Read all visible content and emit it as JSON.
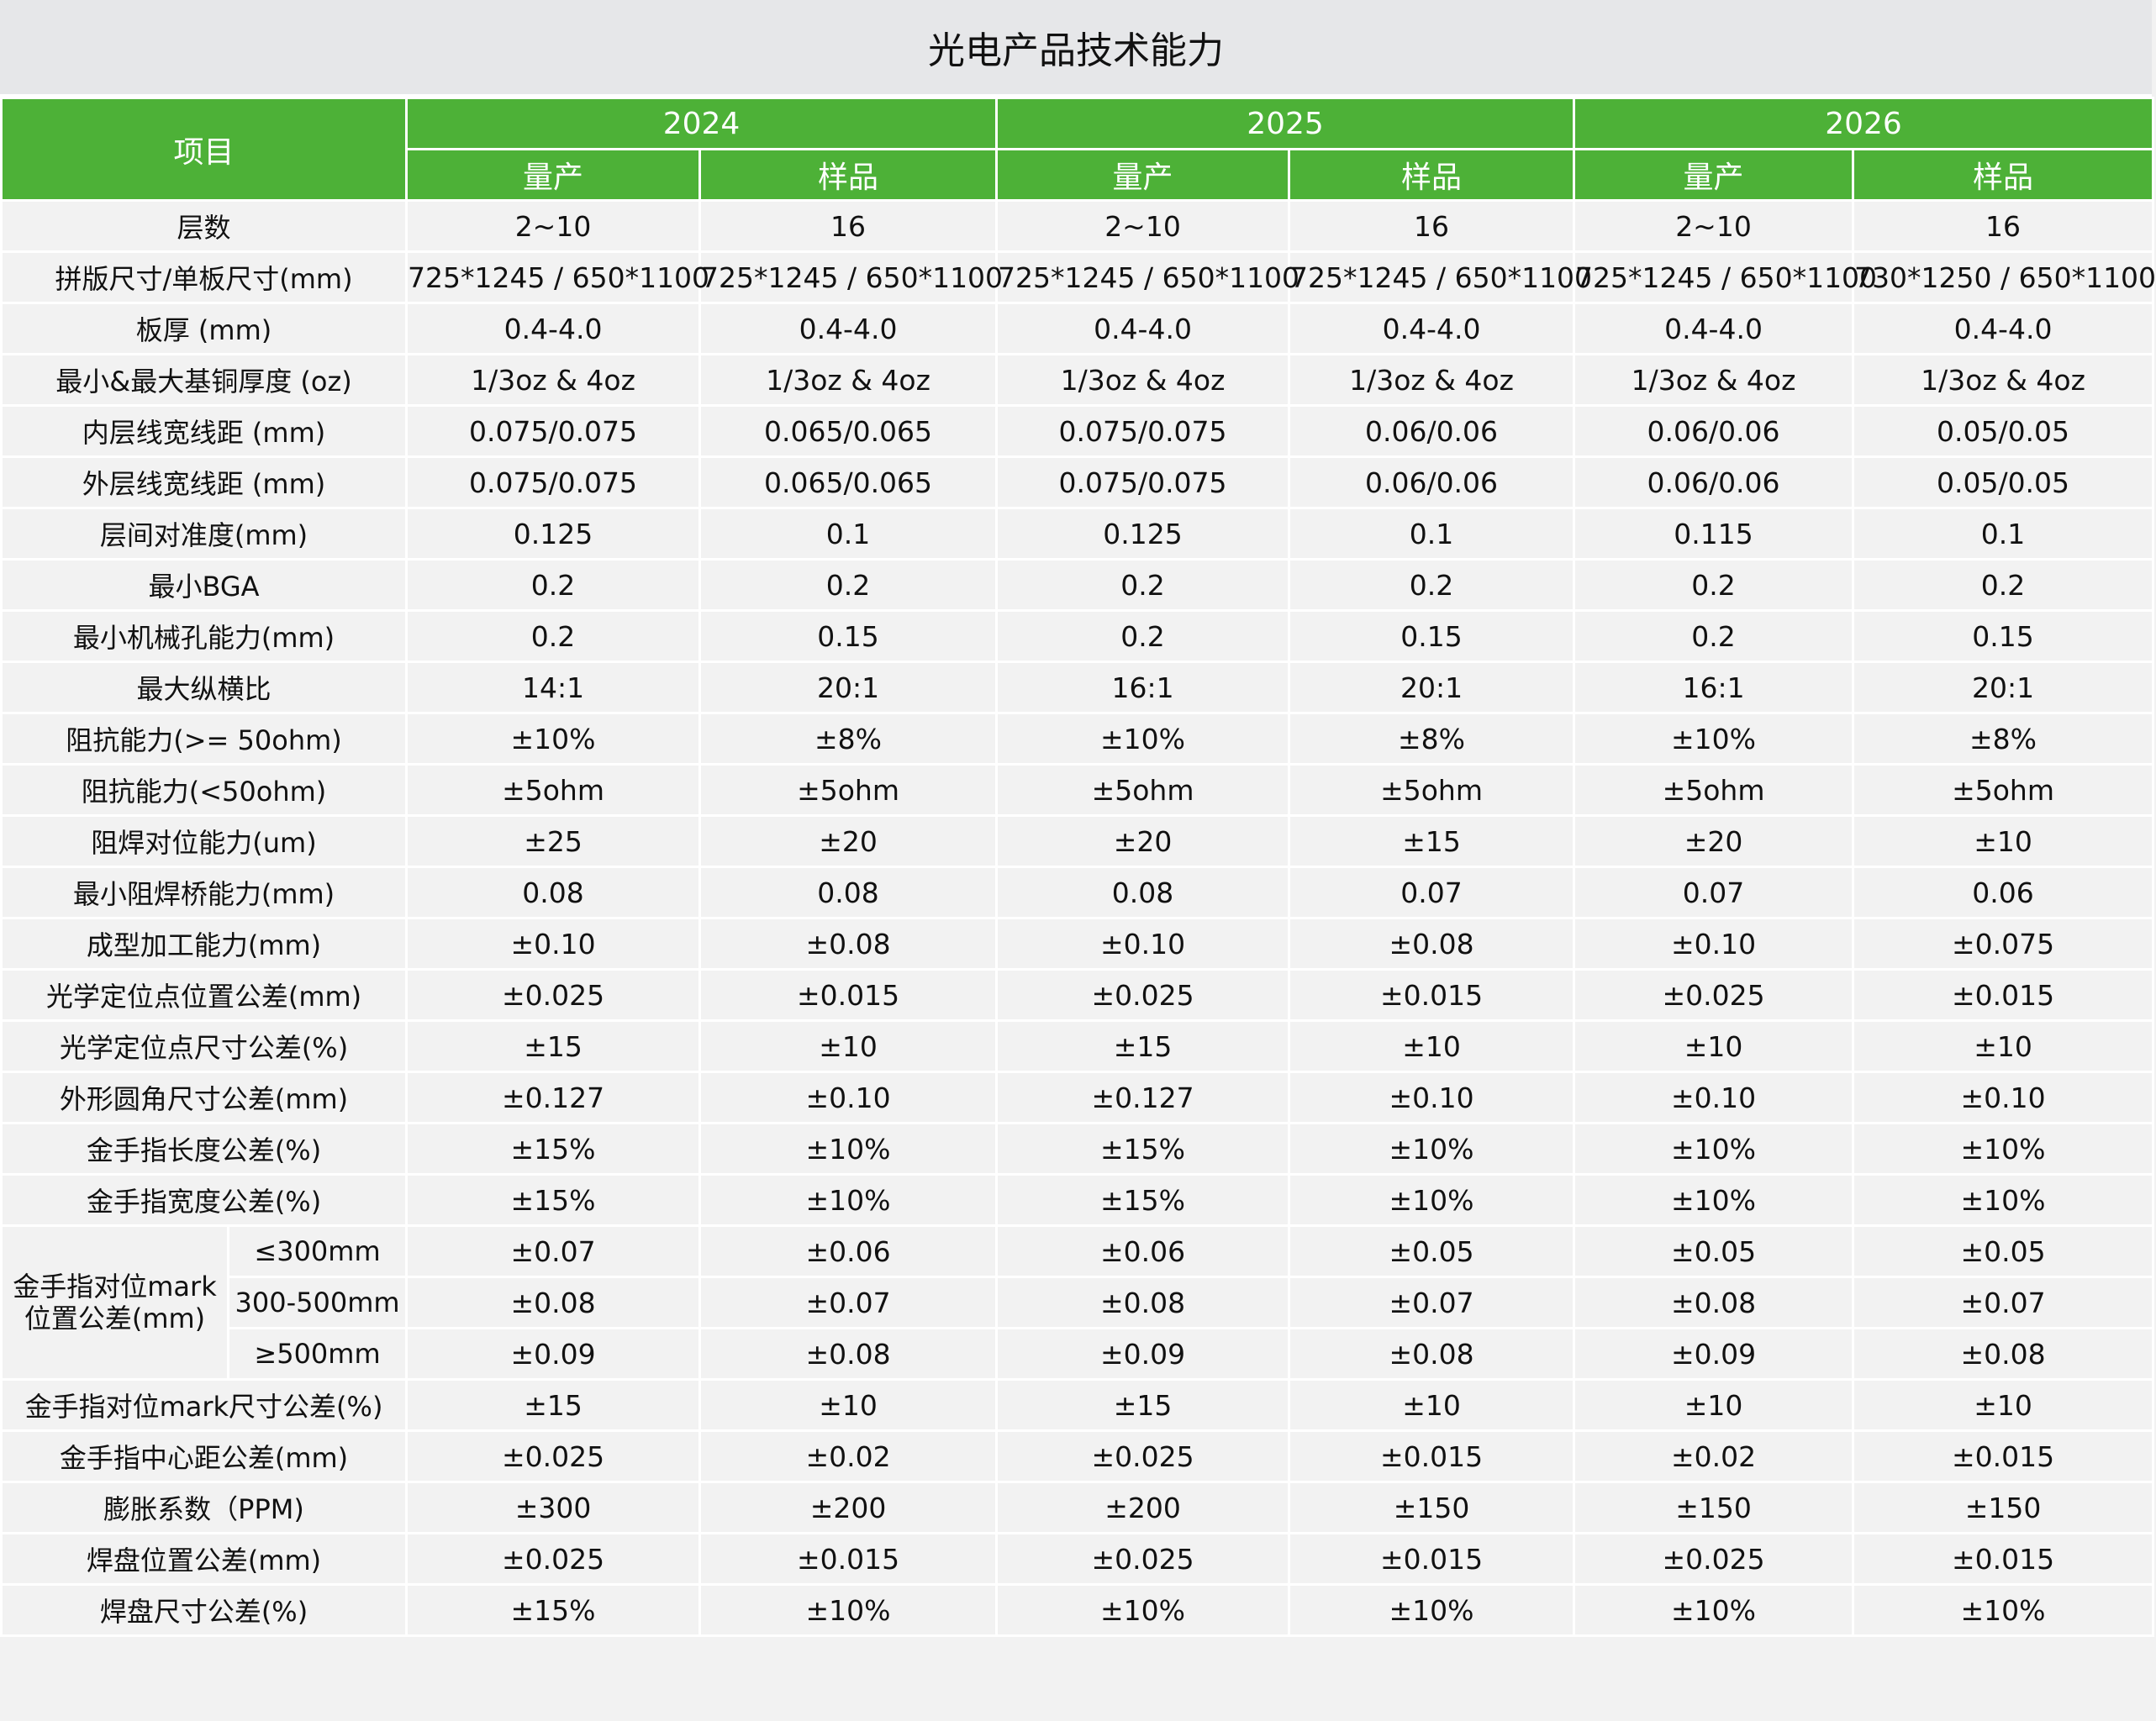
{
  "title": "光电产品技术能力",
  "header": {
    "item_label": "项目",
    "years": [
      "2024",
      "2025",
      "2026"
    ],
    "sub_labels": [
      "量产",
      "样品"
    ]
  },
  "rows": [
    {
      "label": "层数",
      "values": [
        "2~10",
        "16",
        "2~10",
        "16",
        "2~10",
        "16"
      ]
    },
    {
      "label": "拼版尺寸/单板尺寸(mm)",
      "values": [
        "725*1245 / 650*1100",
        "725*1245 / 650*1100",
        "725*1245 / 650*1100",
        "725*1245 / 650*1100",
        "725*1245 / 650*1100",
        "730*1250 / 650*1100"
      ]
    },
    {
      "label": "板厚 (mm)",
      "values": [
        "0.4-4.0",
        "0.4-4.0",
        "0.4-4.0",
        "0.4-4.0",
        "0.4-4.0",
        "0.4-4.0"
      ]
    },
    {
      "label": "最小&最大基铜厚度 (oz)",
      "values": [
        "1/3oz & 4oz",
        "1/3oz & 4oz",
        "1/3oz & 4oz",
        "1/3oz & 4oz",
        "1/3oz & 4oz",
        "1/3oz & 4oz"
      ]
    },
    {
      "label": "内层线宽线距 (mm)",
      "values": [
        "0.075/0.075",
        "0.065/0.065",
        "0.075/0.075",
        "0.06/0.06",
        "0.06/0.06",
        "0.05/0.05"
      ]
    },
    {
      "label": "外层线宽线距 (mm)",
      "values": [
        "0.075/0.075",
        "0.065/0.065",
        "0.075/0.075",
        "0.06/0.06",
        "0.06/0.06",
        "0.05/0.05"
      ]
    },
    {
      "label": "层间对准度(mm)",
      "values": [
        "0.125",
        "0.1",
        "0.125",
        "0.1",
        "0.115",
        "0.1"
      ]
    },
    {
      "label": "最小BGA",
      "values": [
        "0.2",
        "0.2",
        "0.2",
        "0.2",
        "0.2",
        "0.2"
      ]
    },
    {
      "label": "最小机械孔能力(mm)",
      "values": [
        "0.2",
        "0.15",
        "0.2",
        "0.15",
        "0.2",
        "0.15"
      ]
    },
    {
      "label": "最大纵横比",
      "values": [
        "14:1",
        "20:1",
        "16:1",
        "20:1",
        "16:1",
        "20:1"
      ]
    },
    {
      "label": "阻抗能力(>= 50ohm)",
      "values": [
        "±10%",
        "±8%",
        "±10%",
        "±8%",
        "±10%",
        "±8%"
      ]
    },
    {
      "label": "阻抗能力(<50ohm)",
      "values": [
        "±5ohm",
        "±5ohm",
        "±5ohm",
        "±5ohm",
        "±5ohm",
        "±5ohm"
      ]
    },
    {
      "label": "阻焊对位能力(um)",
      "values": [
        "±25",
        "±20",
        "±20",
        "±15",
        "±20",
        "±10"
      ]
    },
    {
      "label": "最小阻焊桥能力(mm)",
      "values": [
        "0.08",
        "0.08",
        "0.08",
        "0.07",
        "0.07",
        "0.06"
      ]
    },
    {
      "label": "成型加工能力(mm)",
      "values": [
        "±0.10",
        "±0.08",
        "±0.10",
        "±0.08",
        "±0.10",
        "±0.075"
      ]
    },
    {
      "label": "光学定位点位置公差(mm)",
      "values": [
        "±0.025",
        "±0.015",
        "±0.025",
        "±0.015",
        "±0.025",
        "±0.015"
      ]
    },
    {
      "label": "光学定位点尺寸公差(%)",
      "values": [
        "±15",
        "±10",
        "±15",
        "±10",
        "±10",
        "±10"
      ]
    },
    {
      "label": "外形圆角尺寸公差(mm)",
      "values": [
        "±0.127",
        "±0.10",
        "±0.127",
        "±0.10",
        "±0.10",
        "±0.10"
      ]
    },
    {
      "label": "金手指长度公差(%)",
      "values": [
        "±15%",
        "±10%",
        "±15%",
        "±10%",
        "±10%",
        "±10%"
      ]
    },
    {
      "label": "金手指宽度公差(%)",
      "values": [
        "±15%",
        "±10%",
        "±15%",
        "±10%",
        "±10%",
        "±10%"
      ]
    },
    {
      "group": "金手指对位mark位置公差(mm)",
      "sub": [
        {
          "label": "≤300mm",
          "values": [
            "±0.07",
            "±0.06",
            "±0.06",
            "±0.05",
            "±0.05",
            "±0.05"
          ]
        },
        {
          "label": "300-500mm",
          "values": [
            "±0.08",
            "±0.07",
            "±0.08",
            "±0.07",
            "±0.08",
            "±0.07"
          ]
        },
        {
          "label": "≥500mm",
          "values": [
            "±0.09",
            "±0.08",
            "±0.09",
            "±0.08",
            "±0.09",
            "±0.08"
          ]
        }
      ]
    },
    {
      "label": "金手指对位mark尺寸公差(%)",
      "values": [
        "±15",
        "±10",
        "±15",
        "±10",
        "±10",
        "±10"
      ]
    },
    {
      "label": "金手指中心距公差(mm)",
      "values": [
        "±0.025",
        "±0.02",
        "±0.025",
        "±0.015",
        "±0.02",
        "±0.015"
      ]
    },
    {
      "label": "膨胀系数（PPM)",
      "values": [
        "±300",
        "±200",
        "±200",
        "±150",
        "±150",
        "±150"
      ]
    },
    {
      "label": "焊盘位置公差(mm)",
      "values": [
        "±0.025",
        "±0.015",
        "±0.025",
        "±0.015",
        "±0.025",
        "±0.015"
      ]
    },
    {
      "label": "焊盘尺寸公差(%)",
      "values": [
        "±15%",
        "±10%",
        "±10%",
        "±10%",
        "±10%",
        "±10%"
      ]
    }
  ],
  "colors": {
    "header_green": "#4db137",
    "title_bg": "#e6e7e9",
    "cell_bg": "#f2f2f2"
  }
}
